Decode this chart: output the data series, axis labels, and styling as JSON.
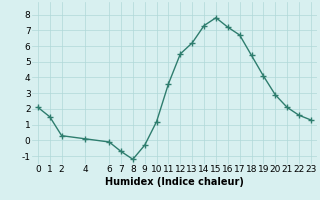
{
  "x": [
    0,
    1,
    2,
    4,
    6,
    7,
    8,
    9,
    10,
    11,
    12,
    13,
    14,
    15,
    16,
    17,
    18,
    19,
    20,
    21,
    22,
    23
  ],
  "y": [
    2.1,
    1.5,
    0.3,
    0.1,
    -0.1,
    -0.7,
    -1.2,
    -0.3,
    1.2,
    3.6,
    5.5,
    6.2,
    7.3,
    7.8,
    7.2,
    6.7,
    5.4,
    4.1,
    2.9,
    2.1,
    1.6,
    1.3
  ],
  "xlabel": "Humidex (Indice chaleur)",
  "line_color": "#2e7d6e",
  "bg_color": "#d8f0f0",
  "grid_color": "#b0d8d8",
  "ylim": [
    -1.5,
    8.8
  ],
  "xlim": [
    -0.5,
    23.5
  ],
  "yticks": [
    -1,
    0,
    1,
    2,
    3,
    4,
    5,
    6,
    7,
    8
  ],
  "xticks": [
    0,
    1,
    2,
    4,
    6,
    7,
    8,
    9,
    10,
    11,
    12,
    13,
    14,
    15,
    16,
    17,
    18,
    19,
    20,
    21,
    22,
    23
  ],
  "xlabel_fontsize": 7,
  "tick_fontsize": 6.5
}
